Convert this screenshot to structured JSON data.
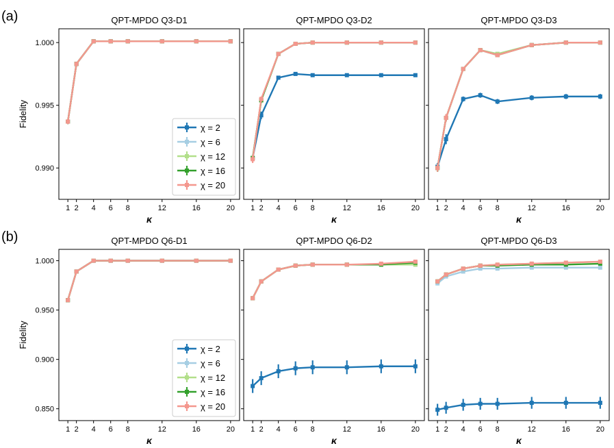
{
  "figure": {
    "panel_labels": [
      "(a)",
      "(b)"
    ]
  },
  "series_colors": [
    "#1f77b4",
    "#a6cee3",
    "#b2df8a",
    "#33a02c",
    "#f4978e"
  ],
  "chart_data": [
    {
      "type": "line",
      "title": "QPT-MPDO Q3-D1",
      "xlabel": "κ",
      "ylabel": "Fidelity",
      "x": [
        1,
        2,
        4,
        6,
        8,
        12,
        16,
        20
      ],
      "xticks": [
        1,
        2,
        4,
        6,
        8,
        12,
        16,
        20
      ],
      "ylim": [
        0.9875,
        1.0011
      ],
      "yticks": [
        0.99,
        0.995,
        1.0
      ],
      "ytick_labels": [
        "0.990",
        "0.995",
        "1.000"
      ],
      "legend": "lower-right",
      "series": [
        {
          "name": "χ = 2",
          "values": [
            0.9937,
            0.9983,
            1.0001,
            1.0001,
            1.0001,
            1.0001,
            1.0001,
            1.0001
          ],
          "err": [
            0.0002,
            0.0001,
            5e-05,
            5e-05,
            5e-05,
            5e-05,
            5e-05,
            5e-05
          ]
        },
        {
          "name": "χ = 6",
          "values": [
            0.9937,
            0.9983,
            1.0001,
            1.0001,
            1.0001,
            1.0001,
            1.0001,
            1.0001
          ],
          "err": [
            0.0002,
            0.0001,
            5e-05,
            5e-05,
            5e-05,
            5e-05,
            5e-05,
            5e-05
          ]
        },
        {
          "name": "χ = 12",
          "values": [
            0.9937,
            0.9983,
            1.0001,
            1.0001,
            1.0001,
            1.0001,
            1.0001,
            1.0001
          ],
          "err": [
            0.0002,
            0.0001,
            5e-05,
            5e-05,
            5e-05,
            5e-05,
            5e-05,
            5e-05
          ]
        },
        {
          "name": "χ = 16",
          "values": [
            0.9937,
            0.9983,
            1.0001,
            1.0001,
            1.0001,
            1.0001,
            1.0001,
            1.0001
          ],
          "err": [
            0.0002,
            0.0001,
            5e-05,
            5e-05,
            5e-05,
            5e-05,
            5e-05,
            5e-05
          ]
        },
        {
          "name": "χ = 20",
          "values": [
            0.9937,
            0.9983,
            1.0001,
            1.0001,
            1.0001,
            1.0001,
            1.0001,
            1.0001
          ],
          "err": [
            0.0002,
            0.0001,
            5e-05,
            5e-05,
            5e-05,
            5e-05,
            5e-05,
            5e-05
          ]
        }
      ]
    },
    {
      "type": "line",
      "title": "QPT-MPDO Q3-D2",
      "xlabel": "κ",
      "x": [
        1,
        2,
        4,
        6,
        8,
        12,
        16,
        20
      ],
      "xticks": [
        1,
        2,
        4,
        6,
        8,
        12,
        16,
        20
      ],
      "ylim": [
        0.9875,
        1.0011
      ],
      "yticks": [
        0.99,
        0.995,
        1.0
      ],
      "ytick_labels": [
        "",
        "",
        ""
      ],
      "series": [
        {
          "name": "χ = 2",
          "values": [
            0.9908,
            0.9942,
            0.9972,
            0.9975,
            0.9974,
            0.9974,
            0.9974,
            0.9974
          ],
          "err": [
            0.0002,
            0.0003,
            0.0001,
            0.0001,
            0.0001,
            0.0001,
            0.0001,
            0.0001
          ]
        },
        {
          "name": "χ = 6",
          "values": [
            0.9908,
            0.9954,
            0.9991,
            0.9999,
            1.0,
            1.0,
            1.0,
            1.0
          ],
          "err": [
            0.0002,
            0.0002,
            0.0001,
            5e-05,
            5e-05,
            5e-05,
            5e-05,
            5e-05
          ]
        },
        {
          "name": "χ = 12",
          "values": [
            0.9908,
            0.9954,
            0.9991,
            0.9999,
            1.0,
            1.0,
            1.0,
            1.0
          ],
          "err": [
            0.0002,
            0.0002,
            0.0001,
            5e-05,
            5e-05,
            5e-05,
            5e-05,
            5e-05
          ]
        },
        {
          "name": "χ = 16",
          "values": [
            0.9908,
            0.9954,
            0.9991,
            0.9999,
            1.0,
            1.0,
            1.0,
            1.0
          ],
          "err": [
            0.0002,
            0.0002,
            0.0001,
            5e-05,
            5e-05,
            5e-05,
            5e-05,
            5e-05
          ]
        },
        {
          "name": "χ = 20",
          "values": [
            0.9907,
            0.9955,
            0.9991,
            0.9999,
            1.0,
            1.0,
            1.0,
            1.0
          ],
          "err": [
            0.0003,
            0.0002,
            0.0001,
            5e-05,
            5e-05,
            5e-05,
            5e-05,
            5e-05
          ]
        }
      ]
    },
    {
      "type": "line",
      "title": "QPT-MPDO Q3-D3",
      "xlabel": "κ",
      "x": [
        1,
        2,
        4,
        6,
        8,
        12,
        16,
        20
      ],
      "xticks": [
        1,
        2,
        4,
        6,
        8,
        12,
        16,
        20
      ],
      "ylim": [
        0.9875,
        1.0011
      ],
      "yticks": [
        0.99,
        0.995,
        1.0
      ],
      "ytick_labels": [
        "",
        "",
        ""
      ],
      "series": [
        {
          "name": "χ = 2",
          "values": [
            0.9901,
            0.9923,
            0.9955,
            0.9958,
            0.9953,
            0.9956,
            0.9957,
            0.9957
          ],
          "err": [
            0.0003,
            0.0004,
            0.0002,
            0.0002,
            0.0002,
            0.0002,
            0.0002,
            0.0002
          ]
        },
        {
          "name": "χ = 6",
          "values": [
            0.99,
            0.994,
            0.9979,
            0.9994,
            0.9991,
            0.9998,
            1.0,
            1.0
          ],
          "err": [
            0.0003,
            0.0003,
            0.0001,
            0.0001,
            0.0001,
            5e-05,
            5e-05,
            5e-05
          ]
        },
        {
          "name": "χ = 12",
          "values": [
            0.99,
            0.994,
            0.9979,
            0.9994,
            0.9991,
            0.9998,
            1.0,
            1.0
          ],
          "err": [
            0.0003,
            0.0003,
            0.0001,
            0.0001,
            0.0001,
            5e-05,
            5e-05,
            5e-05
          ]
        },
        {
          "name": "χ = 16",
          "values": [
            0.99,
            0.994,
            0.9979,
            0.9994,
            0.999,
            0.9998,
            1.0,
            1.0
          ],
          "err": [
            0.0003,
            0.0003,
            0.0001,
            0.0001,
            0.0001,
            5e-05,
            5e-05,
            5e-05
          ]
        },
        {
          "name": "χ = 20",
          "values": [
            0.99,
            0.994,
            0.9979,
            0.9994,
            0.999,
            0.9998,
            1.0,
            1.0
          ],
          "err": [
            0.0003,
            0.0003,
            0.0001,
            0.0001,
            0.0001,
            5e-05,
            5e-05,
            5e-05
          ]
        }
      ]
    },
    {
      "type": "line",
      "title": "QPT-MPDO Q6-D1",
      "xlabel": "κ",
      "ylabel": "Fidelity",
      "x": [
        1,
        2,
        4,
        6,
        8,
        12,
        16,
        20
      ],
      "xticks": [
        1,
        2,
        4,
        6,
        8,
        12,
        16,
        20
      ],
      "ylim": [
        0.838,
        1.0115
      ],
      "yticks": [
        0.85,
        0.9,
        0.95,
        1.0
      ],
      "ytick_labels": [
        "0.850",
        "0.900",
        "0.950",
        "1.000"
      ],
      "legend": "lower-right",
      "series": [
        {
          "name": "χ = 2",
          "values": [
            0.96,
            0.989,
            1.0,
            1.0,
            1.0,
            1.0,
            1.0,
            1.0
          ],
          "err": [
            0.001,
            0.001,
            0.0005,
            0.0005,
            0.0005,
            0.0005,
            0.0005,
            0.0005
          ]
        },
        {
          "name": "χ = 6",
          "values": [
            0.96,
            0.989,
            1.0,
            1.0,
            1.0,
            1.0,
            1.0,
            1.0
          ],
          "err": [
            0.001,
            0.001,
            0.0005,
            0.0005,
            0.0005,
            0.0005,
            0.0005,
            0.0005
          ]
        },
        {
          "name": "χ = 12",
          "values": [
            0.96,
            0.989,
            1.0,
            1.0,
            1.0,
            1.0,
            1.0,
            1.0
          ],
          "err": [
            0.001,
            0.001,
            0.0005,
            0.0005,
            0.0005,
            0.0005,
            0.0005,
            0.0005
          ]
        },
        {
          "name": "χ = 16",
          "values": [
            0.96,
            0.989,
            1.0,
            1.0,
            1.0,
            1.0,
            1.0,
            1.0
          ],
          "err": [
            0.001,
            0.001,
            0.0005,
            0.0005,
            0.0005,
            0.0005,
            0.0005,
            0.0005
          ]
        },
        {
          "name": "χ = 20",
          "values": [
            0.96,
            0.989,
            1.0,
            1.0,
            1.0,
            1.0,
            1.0,
            1.0
          ],
          "err": [
            0.001,
            0.001,
            0.0005,
            0.0005,
            0.0005,
            0.0005,
            0.0005,
            0.0005
          ]
        }
      ]
    },
    {
      "type": "line",
      "title": "QPT-MPDO Q6-D2",
      "xlabel": "κ",
      "x": [
        1,
        2,
        4,
        6,
        8,
        12,
        16,
        20
      ],
      "xticks": [
        1,
        2,
        4,
        6,
        8,
        12,
        16,
        20
      ],
      "ylim": [
        0.838,
        1.0115
      ],
      "yticks": [
        0.85,
        0.9,
        0.95,
        1.0
      ],
      "ytick_labels": [
        "",
        "",
        "",
        ""
      ],
      "series": [
        {
          "name": "χ = 2",
          "values": [
            0.873,
            0.881,
            0.888,
            0.891,
            0.892,
            0.892,
            0.893,
            0.893
          ],
          "err": [
            0.007,
            0.007,
            0.007,
            0.007,
            0.007,
            0.007,
            0.007,
            0.007
          ]
        },
        {
          "name": "χ = 6",
          "values": [
            0.962,
            0.979,
            0.991,
            0.995,
            0.996,
            0.996,
            0.996,
            0.996
          ],
          "err": [
            0.002,
            0.002,
            0.001,
            0.001,
            0.001,
            0.001,
            0.001,
            0.001
          ]
        },
        {
          "name": "χ = 12",
          "values": [
            0.962,
            0.979,
            0.991,
            0.995,
            0.996,
            0.996,
            0.996,
            0.996
          ],
          "err": [
            0.002,
            0.002,
            0.001,
            0.001,
            0.001,
            0.001,
            0.001,
            0.002
          ]
        },
        {
          "name": "χ = 16",
          "values": [
            0.962,
            0.979,
            0.991,
            0.995,
            0.996,
            0.996,
            0.996,
            0.998
          ],
          "err": [
            0.002,
            0.002,
            0.001,
            0.001,
            0.001,
            0.001,
            0.001,
            0.001
          ]
        },
        {
          "name": "χ = 20",
          "values": [
            0.962,
            0.979,
            0.991,
            0.995,
            0.996,
            0.996,
            0.997,
            0.999
          ],
          "err": [
            0.002,
            0.002,
            0.001,
            0.001,
            0.001,
            0.001,
            0.001,
            0.001
          ]
        }
      ]
    },
    {
      "type": "line",
      "title": "QPT-MPDO Q6-D3",
      "xlabel": "κ",
      "x": [
        1,
        2,
        4,
        6,
        8,
        12,
        16,
        20
      ],
      "xticks": [
        1,
        2,
        4,
        6,
        8,
        12,
        16,
        20
      ],
      "ylim": [
        0.838,
        1.0115
      ],
      "yticks": [
        0.85,
        0.9,
        0.95,
        1.0
      ],
      "ytick_labels": [
        "",
        "",
        "",
        ""
      ],
      "series": [
        {
          "name": "χ = 2",
          "values": [
            0.849,
            0.851,
            0.854,
            0.855,
            0.855,
            0.856,
            0.856,
            0.856
          ],
          "err": [
            0.006,
            0.006,
            0.006,
            0.006,
            0.006,
            0.006,
            0.006,
            0.006
          ]
        },
        {
          "name": "χ = 6",
          "values": [
            0.977,
            0.984,
            0.989,
            0.992,
            0.992,
            0.993,
            0.993,
            0.993
          ],
          "err": [
            0.002,
            0.002,
            0.001,
            0.001,
            0.001,
            0.001,
            0.001,
            0.001
          ]
        },
        {
          "name": "χ = 12",
          "values": [
            0.979,
            0.986,
            0.992,
            0.995,
            0.996,
            0.997,
            0.998,
            0.999
          ],
          "err": [
            0.002,
            0.001,
            0.001,
            0.001,
            0.001,
            0.001,
            0.001,
            0.001
          ]
        },
        {
          "name": "χ = 16",
          "values": [
            0.979,
            0.986,
            0.992,
            0.995,
            0.995,
            0.996,
            0.996,
            0.997
          ],
          "err": [
            0.002,
            0.001,
            0.001,
            0.001,
            0.001,
            0.001,
            0.001,
            0.001
          ]
        },
        {
          "name": "χ = 20",
          "values": [
            0.979,
            0.986,
            0.992,
            0.995,
            0.996,
            0.997,
            0.998,
            0.999
          ],
          "err": [
            0.002,
            0.001,
            0.001,
            0.001,
            0.001,
            0.001,
            0.001,
            0.001
          ]
        }
      ]
    }
  ]
}
